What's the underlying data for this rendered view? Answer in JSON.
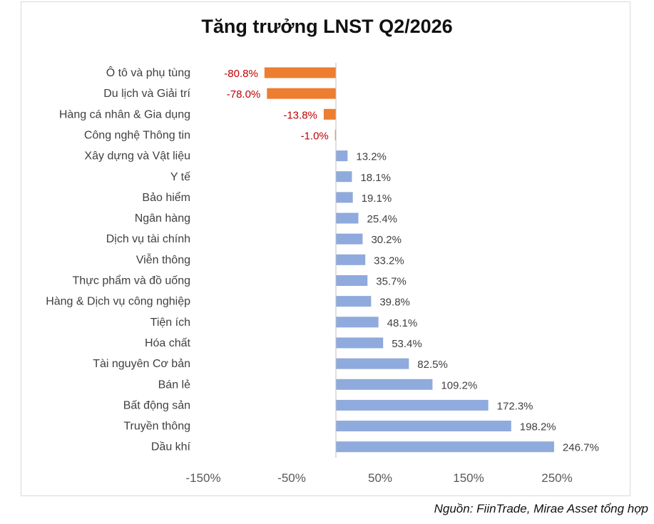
{
  "chart_data": {
    "type": "bar",
    "orientation": "horizontal",
    "title": "Tăng trưởng LNST Q2/2026",
    "categories": [
      "Ô tô và phụ tùng",
      "Du lịch và Giải trí",
      "Hàng cá nhân & Gia dụng",
      "Công nghệ Thông tin",
      "Xây dựng và Vật liệu",
      "Y tế",
      "Bảo hiểm",
      "Ngân hàng",
      "Dịch vụ tài chính",
      "Viễn thông",
      "Thực phẩm và đồ uống",
      "Hàng & Dịch vụ công nghiệp",
      "Tiện ích",
      "Hóa chất",
      "Tài nguyên Cơ bản",
      "Bán lẻ",
      "Bất động sản",
      "Truyền thông",
      "Dầu khí"
    ],
    "values": [
      -80.8,
      -78.0,
      -13.8,
      -1.0,
      13.2,
      18.1,
      19.1,
      25.4,
      30.2,
      33.2,
      35.7,
      39.8,
      48.1,
      53.4,
      82.5,
      109.2,
      172.3,
      198.2,
      246.7
    ],
    "value_labels": [
      "-80.8%",
      "-78.0%",
      "-13.8%",
      "-1.0%",
      "13.2%",
      "18.1%",
      "19.1%",
      "25.4%",
      "30.2%",
      "33.2%",
      "35.7%",
      "39.8%",
      "48.1%",
      "53.4%",
      "82.5%",
      "109.2%",
      "172.3%",
      "198.2%",
      "246.7%"
    ],
    "x_ticks": [
      -150,
      -50,
      50,
      150,
      250
    ],
    "x_tick_labels": [
      "-150%",
      "-50%",
      "50%",
      "150%",
      "250%"
    ],
    "xlim": [
      -150,
      250
    ],
    "grid": false,
    "colors": {
      "negative_bar": "#ED7D31",
      "positive_bar": "#8FAADC",
      "negative_label": "#C00000",
      "positive_label": "#404040",
      "axis": "#bfbfbf"
    }
  },
  "source": "Nguồn: FiinTrade, Mirae Asset tổng hợp"
}
